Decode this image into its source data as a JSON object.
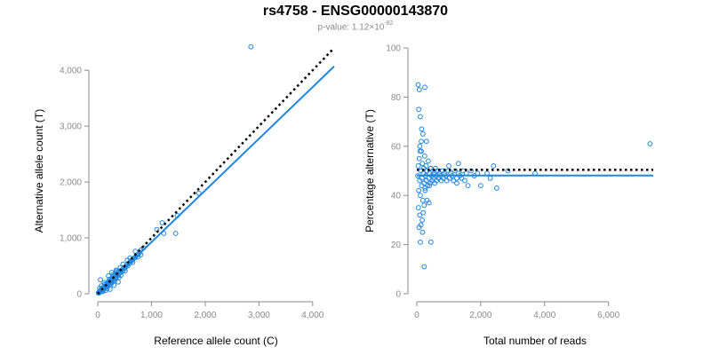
{
  "figure": {
    "title": "rs4758 - ENSG00000143870",
    "subtitle_prefix": "p-value: 1.12×10",
    "subtitle_exponent": "-82"
  },
  "colors": {
    "points": "#1f86e0",
    "fit": "#1f86e0",
    "reference": "#000000",
    "axis": "#8a8a8a"
  },
  "chart_data": [
    {
      "type": "scatter",
      "title": "",
      "xlabel": "Reference allele count (C)",
      "ylabel": "Alternative allele count (T)",
      "xlim": [
        0,
        4400
      ],
      "ylim": [
        0,
        4400
      ],
      "xticks": [
        0,
        1000,
        2000,
        3000,
        4000
      ],
      "xtick_labels": [
        "0",
        "1,000",
        "2,000",
        "3,000",
        "4,000"
      ],
      "yticks": [
        0,
        1000,
        2000,
        3000,
        4000
      ],
      "ytick_labels": [
        "0",
        "1,000",
        "2,000",
        "3,000",
        "4,000"
      ],
      "grid": false,
      "legend": "none",
      "fit_line": {
        "style": "solid",
        "x": [
          0,
          4400
        ],
        "y": [
          0,
          4070
        ]
      },
      "reference_line": {
        "style": "dotted",
        "x": [
          0,
          4400
        ],
        "y": [
          0,
          4400
        ]
      },
      "points": [
        [
          10,
          15
        ],
        [
          18,
          12
        ],
        [
          25,
          30
        ],
        [
          30,
          20
        ],
        [
          40,
          50
        ],
        [
          45,
          35
        ],
        [
          55,
          40
        ],
        [
          60,
          70
        ],
        [
          70,
          55
        ],
        [
          80,
          90
        ],
        [
          90,
          60
        ],
        [
          100,
          110
        ],
        [
          110,
          85
        ],
        [
          120,
          130
        ],
        [
          130,
          100
        ],
        [
          140,
          120
        ],
        [
          150,
          160
        ],
        [
          160,
          140
        ],
        [
          170,
          130
        ],
        [
          180,
          200
        ],
        [
          190,
          150
        ],
        [
          200,
          180
        ],
        [
          210,
          220
        ],
        [
          220,
          190
        ],
        [
          230,
          210
        ],
        [
          240,
          250
        ],
        [
          250,
          230
        ],
        [
          260,
          200
        ],
        [
          270,
          280
        ],
        [
          280,
          260
        ],
        [
          290,
          240
        ],
        [
          300,
          320
        ],
        [
          310,
          290
        ],
        [
          320,
          270
        ],
        [
          330,
          350
        ],
        [
          340,
          310
        ],
        [
          350,
          300
        ],
        [
          360,
          380
        ],
        [
          370,
          340
        ],
        [
          380,
          330
        ],
        [
          390,
          400
        ],
        [
          400,
          360
        ],
        [
          420,
          380
        ],
        [
          440,
          420
        ],
        [
          460,
          400
        ],
        [
          480,
          460
        ],
        [
          500,
          450
        ],
        [
          520,
          480
        ],
        [
          540,
          520
        ],
        [
          560,
          500
        ],
        [
          580,
          540
        ],
        [
          600,
          560
        ],
        [
          620,
          580
        ],
        [
          640,
          600
        ],
        [
          660,
          620
        ],
        [
          680,
          640
        ],
        [
          700,
          650
        ],
        [
          720,
          690
        ],
        [
          750,
          700
        ],
        [
          780,
          740
        ],
        [
          50,
          250
        ],
        [
          120,
          200
        ],
        [
          200,
          320
        ],
        [
          260,
          380
        ],
        [
          340,
          420
        ],
        [
          420,
          470
        ],
        [
          300,
          150
        ],
        [
          380,
          210
        ],
        [
          150,
          60
        ],
        [
          230,
          80
        ],
        [
          800,
          780
        ],
        [
          850,
          820
        ],
        [
          1100,
          1150
        ],
        [
          1200,
          1270
        ],
        [
          1230,
          1080
        ],
        [
          1450,
          1080
        ],
        [
          1480,
          1400
        ],
        [
          1880,
          1800
        ],
        [
          2850,
          4420
        ],
        [
          35,
          100
        ],
        [
          65,
          140
        ],
        [
          95,
          40
        ],
        [
          130,
          170
        ],
        [
          175,
          90
        ],
        [
          215,
          260
        ],
        [
          245,
          170
        ],
        [
          285,
          340
        ],
        [
          315,
          230
        ],
        [
          355,
          410
        ],
        [
          395,
          290
        ],
        [
          430,
          330
        ],
        [
          470,
          530
        ],
        [
          510,
          410
        ],
        [
          550,
          600
        ],
        [
          600,
          640
        ],
        [
          650,
          560
        ],
        [
          700,
          760
        ],
        [
          750,
          660
        ],
        [
          800,
          700
        ]
      ]
    },
    {
      "type": "scatter",
      "title": "",
      "xlabel": "Total number of reads",
      "ylabel": "Percentage alternative (T)",
      "xlim": [
        0,
        7400
      ],
      "ylim": [
        0,
        100
      ],
      "xticks": [
        0,
        2000,
        4000,
        6000
      ],
      "xtick_labels": [
        "0",
        "2,000",
        "4,000",
        "6,000"
      ],
      "yticks": [
        0,
        20,
        40,
        60,
        80,
        100
      ],
      "ytick_labels": [
        "0",
        "20",
        "40",
        "60",
        "80",
        "100"
      ],
      "grid": false,
      "legend": "none",
      "fit_line": {
        "style": "solid",
        "x": [
          0,
          7400
        ],
        "y": [
          48.1,
          48.1
        ]
      },
      "reference_line": {
        "style": "dotted",
        "x": [
          0,
          7400
        ],
        "y": [
          50.4,
          50.4
        ]
      },
      "points": [
        [
          30,
          48
        ],
        [
          45,
          52
        ],
        [
          60,
          42
        ],
        [
          75,
          55
        ],
        [
          90,
          46
        ],
        [
          100,
          58
        ],
        [
          110,
          40
        ],
        [
          125,
          50
        ],
        [
          140,
          62
        ],
        [
          150,
          44
        ],
        [
          160,
          47
        ],
        [
          175,
          53
        ],
        [
          190,
          38
        ],
        [
          200,
          49
        ],
        [
          215,
          51
        ],
        [
          230,
          45
        ],
        [
          245,
          56
        ],
        [
          260,
          43
        ],
        [
          275,
          48
        ],
        [
          290,
          52
        ],
        [
          300,
          46
        ],
        [
          320,
          50
        ],
        [
          340,
          44
        ],
        [
          360,
          54
        ],
        [
          380,
          47
        ],
        [
          400,
          49
        ],
        [
          420,
          45
        ],
        [
          440,
          51
        ],
        [
          460,
          48
        ],
        [
          480,
          46
        ],
        [
          500,
          50
        ],
        [
          520,
          47
        ],
        [
          540,
          49
        ],
        [
          560,
          45
        ],
        [
          580,
          51
        ],
        [
          600,
          48
        ],
        [
          620,
          46
        ],
        [
          650,
          50
        ],
        [
          680,
          47
        ],
        [
          710,
          49
        ],
        [
          740,
          48
        ],
        [
          770,
          46
        ],
        [
          800,
          50
        ],
        [
          830,
          47
        ],
        [
          860,
          49
        ],
        [
          900,
          48
        ],
        [
          940,
          46
        ],
        [
          980,
          50
        ],
        [
          1020,
          47
        ],
        [
          1060,
          49
        ],
        [
          1100,
          48
        ],
        [
          1150,
          46
        ],
        [
          1200,
          50
        ],
        [
          1250,
          47
        ],
        [
          1300,
          49
        ],
        [
          1350,
          48
        ],
        [
          1400,
          47
        ],
        [
          1450,
          50
        ],
        [
          1500,
          46
        ],
        [
          1550,
          49
        ],
        [
          40,
          85
        ],
        [
          80,
          83
        ],
        [
          250,
          84
        ],
        [
          60,
          75
        ],
        [
          110,
          72
        ],
        [
          150,
          67
        ],
        [
          190,
          65
        ],
        [
          95,
          60
        ],
        [
          300,
          62
        ],
        [
          140,
          58
        ],
        [
          50,
          35
        ],
        [
          90,
          32
        ],
        [
          130,
          28
        ],
        [
          170,
          30
        ],
        [
          230,
          36
        ],
        [
          320,
          38
        ],
        [
          380,
          37
        ],
        [
          260,
          42
        ],
        [
          400,
          44
        ],
        [
          200,
          33
        ],
        [
          110,
          21
        ],
        [
          230,
          11
        ],
        [
          440,
          21
        ],
        [
          70,
          27
        ],
        [
          180,
          25
        ],
        [
          2000,
          44
        ],
        [
          2500,
          43
        ],
        [
          2400,
          52
        ],
        [
          2850,
          50
        ],
        [
          3700,
          49
        ],
        [
          7300,
          61
        ],
        [
          1000,
          52
        ],
        [
          1300,
          53
        ],
        [
          1700,
          50
        ],
        [
          1900,
          49
        ],
        [
          2300,
          47
        ],
        [
          2200,
          49
        ],
        [
          1800,
          48
        ],
        [
          1600,
          44
        ],
        [
          1250,
          45
        ]
      ]
    }
  ]
}
